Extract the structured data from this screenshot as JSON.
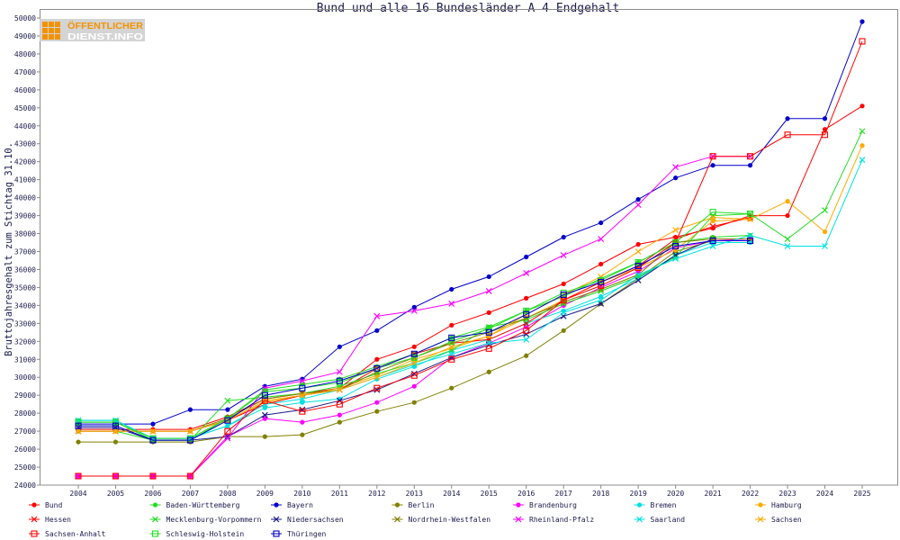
{
  "logo": {
    "line1": "ÖFFENTLICHER",
    "line2": "DIENST.INFO",
    "accent": "#f39200"
  },
  "chart_data": {
    "type": "line",
    "title": "Bund und alle 16 Bundesländer A 4 Endgehalt",
    "ylabel": "Bruttojahresgehalt zum Stichtag 31.10.",
    "x": [
      2004,
      2005,
      2006,
      2007,
      2008,
      2009,
      2010,
      2011,
      2012,
      2013,
      2014,
      2015,
      2016,
      2017,
      2018,
      2019,
      2020,
      2021,
      2022,
      2023,
      2024,
      2025
    ],
    "ylim": [
      24000,
      50000
    ],
    "yticks": [
      24000,
      25000,
      26000,
      27000,
      28000,
      29000,
      30000,
      31000,
      32000,
      33000,
      34000,
      35000,
      36000,
      37000,
      38000,
      39000,
      40000,
      41000,
      42000,
      43000,
      44000,
      45000,
      46000,
      47000,
      48000,
      49000,
      50000
    ],
    "grid": false,
    "legend_position": "bottom",
    "series": [
      {
        "name": "Bund",
        "color": "#ff0000",
        "marker": "dot",
        "values": [
          27100,
          27100,
          27100,
          27100,
          27800,
          28800,
          29100,
          29400,
          31000,
          31700,
          32900,
          33600,
          34400,
          35200,
          36300,
          37400,
          37800,
          38300,
          39000,
          39000,
          43800,
          45100
        ]
      },
      {
        "name": "Baden-Württemberg",
        "color": "#22dd22",
        "marker": "dot",
        "values": [
          27000,
          27000,
          26500,
          26500,
          27700,
          29300,
          29600,
          29900,
          30600,
          31300,
          32200,
          32800,
          33700,
          34500,
          35500,
          36400,
          37500,
          37800,
          37900,
          null,
          null,
          null
        ]
      },
      {
        "name": "Bayern",
        "color": "#0000cc",
        "marker": "dot",
        "values": [
          27400,
          27400,
          27400,
          28200,
          28200,
          29500,
          29900,
          31700,
          32600,
          33900,
          34900,
          35600,
          36700,
          37800,
          38600,
          39900,
          41100,
          41800,
          41800,
          44400,
          44400,
          49800
        ]
      },
      {
        "name": "Berlin",
        "color": "#808000",
        "marker": "dot",
        "values": [
          26400,
          26400,
          26400,
          26400,
          26700,
          26700,
          26800,
          27500,
          28100,
          28600,
          29400,
          30300,
          31200,
          32600,
          34100,
          35500,
          37000,
          37600,
          37600,
          null,
          null,
          null
        ]
      },
      {
        "name": "Brandenburg",
        "color": "#ff00ff",
        "marker": "dot",
        "values": [
          24500,
          24500,
          24500,
          24500,
          26700,
          27700,
          27500,
          27900,
          28600,
          29500,
          31100,
          31900,
          32800,
          34000,
          35000,
          35900,
          37200,
          37600,
          37700,
          null,
          null,
          null
        ]
      },
      {
        "name": "Bremen",
        "color": "#00e0e0",
        "marker": "dot",
        "values": [
          27600,
          27600,
          26600,
          26600,
          27300,
          28300,
          28600,
          28800,
          29900,
          30600,
          31500,
          32100,
          33000,
          33700,
          34500,
          35500,
          36800,
          37500,
          37500,
          null,
          null,
          null
        ]
      },
      {
        "name": "Hamburg",
        "color": "#ffaa00",
        "marker": "dot",
        "values": [
          27000,
          27000,
          27000,
          27000,
          27600,
          28600,
          29000,
          29400,
          30100,
          31000,
          31600,
          32300,
          33300,
          34300,
          35300,
          36100,
          37100,
          38700,
          38800,
          39800,
          38100,
          42900
        ]
      },
      {
        "name": "Hessen",
        "color": "#ff0000",
        "marker": "x",
        "values": [
          27000,
          27000,
          27000,
          27000,
          27600,
          28500,
          29000,
          29300,
          30500,
          31300,
          31900,
          32100,
          33000,
          34300,
          35300,
          36200,
          37700,
          38400,
          38900,
          null,
          null,
          null
        ]
      },
      {
        "name": "Mecklenburg-Vorpommern",
        "color": "#22dd22",
        "marker": "x",
        "values": [
          27500,
          27500,
          26500,
          26500,
          28700,
          28900,
          29100,
          29500,
          30200,
          30800,
          31500,
          32800,
          33200,
          34100,
          34800,
          35600,
          36700,
          39000,
          39100,
          37700,
          39300,
          43700
        ]
      },
      {
        "name": "Niedersachsen",
        "color": "#1a1a8c",
        "marker": "x",
        "values": [
          27200,
          27200,
          26500,
          26500,
          26700,
          27900,
          28200,
          28700,
          29300,
          30200,
          31100,
          31800,
          32400,
          33400,
          34100,
          35400,
          36800,
          37700,
          37700,
          null,
          null,
          null
        ]
      },
      {
        "name": "Nordrhein-Westfalen",
        "color": "#808000",
        "marker": "x",
        "values": [
          27000,
          27000,
          27000,
          27000,
          27700,
          28800,
          29100,
          29300,
          30300,
          31100,
          31900,
          32500,
          33300,
          34200,
          34900,
          35700,
          37500,
          37700,
          37700,
          null,
          null,
          null
        ]
      },
      {
        "name": "Rheinland-Pfalz",
        "color": "#ff00ff",
        "marker": "x",
        "values": [
          24500,
          24500,
          24500,
          24500,
          26600,
          29400,
          29800,
          30300,
          33400,
          33700,
          34100,
          34800,
          35800,
          36800,
          37700,
          39600,
          41700,
          42300,
          42300,
          null,
          null,
          null
        ]
      },
      {
        "name": "Saarland",
        "color": "#00e0e0",
        "marker": "x",
        "values": [
          27600,
          27600,
          26600,
          26600,
          27300,
          28500,
          28800,
          29300,
          30000,
          30700,
          31300,
          31900,
          32100,
          33600,
          34300,
          35700,
          36600,
          37300,
          37900,
          37300,
          37300,
          42100
        ]
      },
      {
        "name": "Sachsen",
        "color": "#ffaa00",
        "marker": "x",
        "values": [
          27000,
          27000,
          27000,
          27000,
          27600,
          28700,
          29000,
          29300,
          30000,
          30800,
          31700,
          32300,
          33500,
          34600,
          35600,
          37000,
          38200,
          38900,
          38800,
          null,
          null,
          null
        ]
      },
      {
        "name": "Sachsen-Anhalt",
        "color": "#ff0000",
        "marker": "square",
        "values": [
          24500,
          24500,
          24500,
          24500,
          27000,
          28700,
          28100,
          28500,
          29400,
          30100,
          31000,
          31600,
          32600,
          34300,
          35100,
          36100,
          37500,
          42300,
          42300,
          43500,
          43500,
          48700
        ]
      },
      {
        "name": "Schleswig-Holstein",
        "color": "#22dd22",
        "marker": "square",
        "values": [
          27500,
          27500,
          26600,
          26600,
          27700,
          29200,
          29400,
          29700,
          30500,
          31100,
          32000,
          32700,
          33700,
          34700,
          35400,
          36400,
          37500,
          39200,
          39100,
          null,
          null,
          null
        ]
      },
      {
        "name": "Thüringen",
        "color": "#0000cc",
        "marker": "square",
        "values": [
          27300,
          27300,
          26500,
          26500,
          27600,
          29000,
          29400,
          29800,
          30500,
          31300,
          32200,
          32500,
          33500,
          34600,
          35300,
          36200,
          37300,
          37600,
          37600,
          null,
          null,
          null
        ]
      }
    ]
  }
}
